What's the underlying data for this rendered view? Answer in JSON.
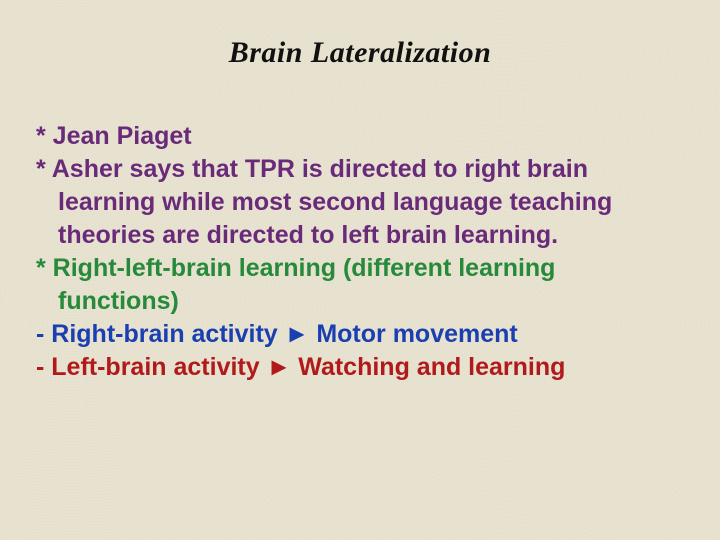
{
  "title": "Brain Lateralization",
  "colors": {
    "background": "#e8e2d0",
    "title": "#111111",
    "p1": "#6a2a7a",
    "p2": "#6a2a7a",
    "p3": "#268a3a",
    "p4": "#1a3fb0",
    "p5": "#b01a1a"
  },
  "font": {
    "title_family": "Brush Script MT",
    "body_family": "Comic Sans MS",
    "title_size_pt": 30,
    "body_size_pt": 25,
    "title_style": "italic",
    "weight": "bold"
  },
  "items": [
    {
      "marker": "*",
      "text": "Jean Piaget",
      "color": "#6a2a7a"
    },
    {
      "marker": "*",
      "text": "Asher says that TPR is directed to right brain learning while most second language teaching theories are directed to left brain learning.",
      "color": "#6a2a7a"
    },
    {
      "marker": "*",
      "text": "Right-left-brain learning (different learning functions)",
      "color": "#268a3a"
    },
    {
      "marker": "-",
      "text": "Right-brain activity ► Motor movement",
      "color": "#1a3fb0"
    },
    {
      "marker": "-",
      "text": "Left-brain activity ► Watching and learning",
      "color": "#b01a1a"
    }
  ],
  "lines": {
    "l1": "* Jean Piaget",
    "l2a": "* Asher says that TPR is directed to right brain",
    "l2b": "learning while most second language teaching",
    "l2c": "theories are directed to left brain learning.",
    "l3a": "* Right-left-brain learning (different learning",
    "l3b": "functions)",
    "l4": "- Right-brain activity ► Motor movement",
    "l5": "- Left-brain activity ► Watching and learning"
  }
}
